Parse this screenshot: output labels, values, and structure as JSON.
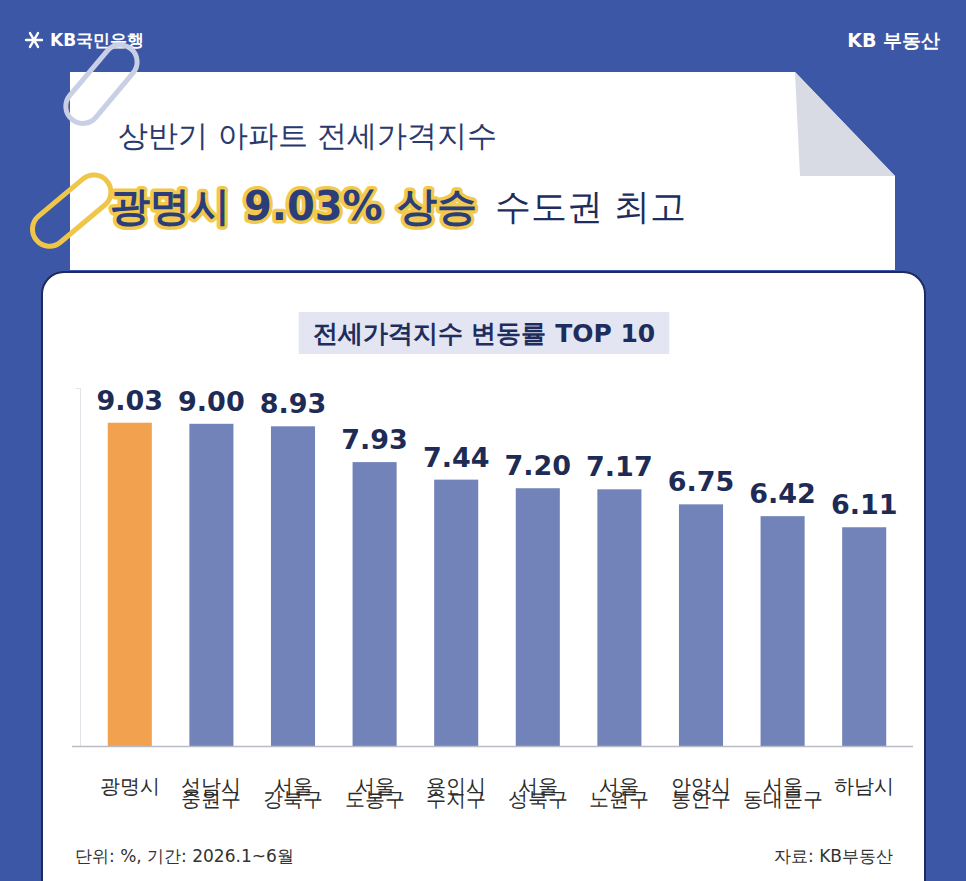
{
  "header": {
    "brand": "KB국민은행",
    "service": "KB 부동산",
    "headline": "상반기 아파트 전세가격지수",
    "highlight": "광명시 9.03% 상승",
    "headline_tail": "수도권 최고"
  },
  "chart_data": {
    "type": "bar",
    "title": "전세가격지수 변동률 TOP 10",
    "categories": [
      "광명시",
      "성남시 중원구",
      "서울 강북구",
      "서울 도봉구",
      "용인시 수지구",
      "서울 성북구",
      "서울 노원구",
      "안양시 동안구",
      "서울 동대문구",
      "하남시"
    ],
    "values": [
      9.03,
      9.0,
      8.93,
      7.93,
      7.44,
      7.2,
      7.17,
      6.75,
      6.42,
      6.11
    ],
    "value_labels": [
      "9.03",
      "9.00",
      "8.93",
      "7.93",
      "7.44",
      "7.20",
      "7.17",
      "6.75",
      "6.42",
      "6.11"
    ],
    "colors": [
      "#f2a24f",
      "#7183b8",
      "#7183b8",
      "#7183b8",
      "#7183b8",
      "#7183b8",
      "#7183b8",
      "#7183b8",
      "#7183b8",
      "#7183b8"
    ],
    "ylim": [
      0,
      10
    ],
    "yticks": [
      0,
      10
    ],
    "grid": false,
    "data_labels": true,
    "tick_labels": "x",
    "annotations": [
      "단위: %, 기간: 2026.1~6월",
      "자료: KB부동산"
    ]
  }
}
